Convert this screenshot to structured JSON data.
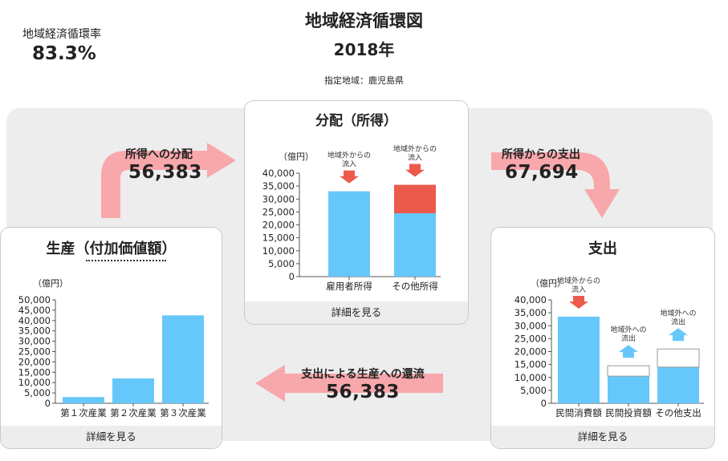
{
  "header": {
    "title": "地域経済循環図",
    "year": "2018年",
    "region": "指定地域：鹿児島県",
    "rate_label": "地域経済循環率",
    "rate_value": "83.3%"
  },
  "colors": {
    "bar": "#66c8fa",
    "inflow": "#ec5a4c",
    "outflow_arrow": "#66c8fa",
    "flow_arrow": "#f8a7ab"
  },
  "flows": {
    "to_income": {
      "label": "所得への分配",
      "value": "56,383"
    },
    "from_income": {
      "label": "所得からの支出",
      "value": "67,694"
    },
    "to_production": {
      "label": "支出による生産への還流",
      "value": "56,383"
    }
  },
  "panels": {
    "distribution": {
      "title": "分配（所得）",
      "unit": "（億円）",
      "detail": "詳細を見る"
    },
    "production": {
      "title": "生産（付加価値額）",
      "unit": "（億円）",
      "detail": "詳細を見る"
    },
    "expenditure": {
      "title": "支出",
      "unit": "（億円）",
      "detail": "詳細を見る"
    }
  },
  "chart_data": [
    {
      "id": "distribution",
      "type": "bar",
      "stacked": true,
      "categories": [
        "雇用者所得",
        "その他所得"
      ],
      "series": [
        {
          "values": [
            33000,
            24500
          ],
          "color": "#66c8fa"
        },
        {
          "values": [
            0,
            11000
          ],
          "color": "#ec5a4c"
        }
      ],
      "annotations": [
        {
          "category": "雇用者所得",
          "text": [
            "地域外からの",
            "流入"
          ],
          "direction": "down",
          "color": "#ec5a4c"
        },
        {
          "category": "その他所得",
          "text": [
            "地域外からの",
            "流入"
          ],
          "direction": "down",
          "color": "#ec5a4c"
        }
      ],
      "ylabel": "（億円）",
      "ylim": [
        0,
        40000
      ],
      "yticks": [
        "0",
        "5,000",
        "10,000",
        "15,000",
        "20,000",
        "25,000",
        "30,000",
        "35,000",
        "40,000"
      ]
    },
    {
      "id": "production",
      "type": "bar",
      "categories": [
        "第１次産業",
        "第２次産業",
        "第３次産業"
      ],
      "values": [
        3000,
        12000,
        42500
      ],
      "ylabel": "（億円）",
      "ylim": [
        0,
        50000
      ],
      "yticks": [
        "0",
        "5,000",
        "10,000",
        "15,000",
        "20,000",
        "25,000",
        "30,000",
        "35,000",
        "40,000",
        "45,000",
        "50,000"
      ]
    },
    {
      "id": "expenditure",
      "type": "bar",
      "stacked": true,
      "categories": [
        "民間消費額",
        "民間投資額",
        "その他支出"
      ],
      "series": [
        {
          "values": [
            33500,
            10500,
            14000
          ],
          "color": "#66c8fa"
        },
        {
          "values": [
            0,
            4000,
            7000
          ],
          "color": "#ffffff",
          "outline": true
        }
      ],
      "annotations": [
        {
          "category": "民間消費額",
          "text": [
            "地域外からの",
            "流入"
          ],
          "direction": "down",
          "color": "#ec5a4c"
        },
        {
          "category": "民間投資額",
          "text": [
            "地域外への",
            "流出"
          ],
          "direction": "up",
          "color": "#66c8fa"
        },
        {
          "category": "その他支出",
          "text": [
            "地域外への",
            "流出"
          ],
          "direction": "up",
          "color": "#66c8fa"
        }
      ],
      "ylabel": "（億円）",
      "ylim": [
        0,
        40000
      ],
      "yticks": [
        "0",
        "5,000",
        "10,000",
        "15,000",
        "20,000",
        "25,000",
        "30,000",
        "35,000",
        "40,000"
      ]
    }
  ]
}
